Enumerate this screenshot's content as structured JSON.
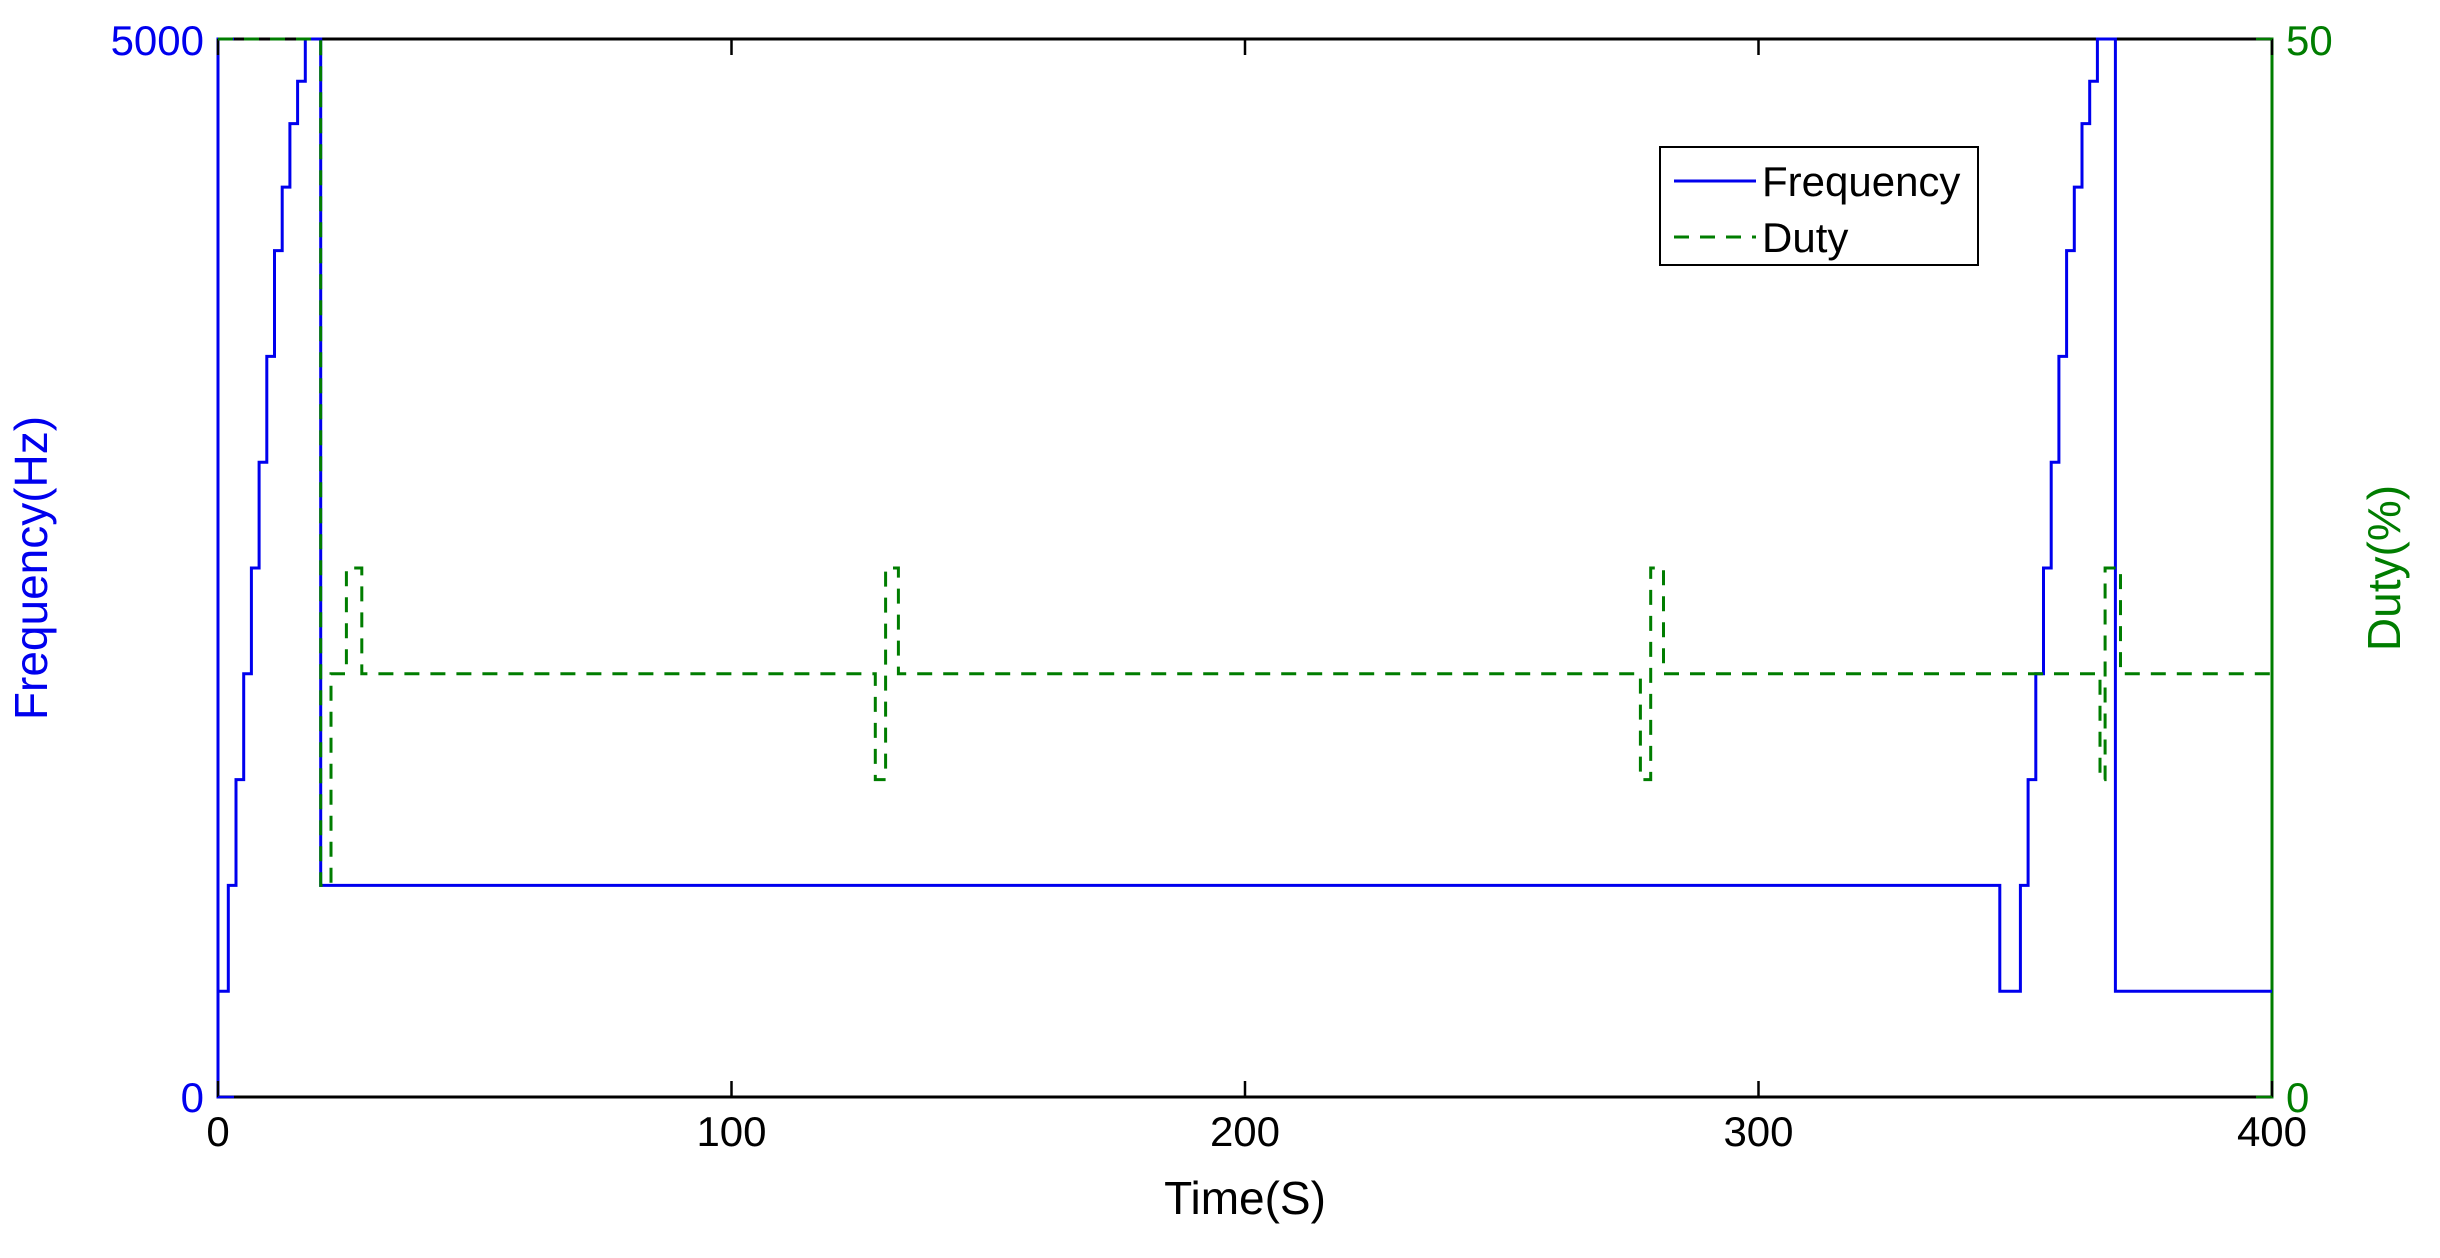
{
  "figure": {
    "background": "#ffffff",
    "legend": {
      "entries": [
        {
          "label": "Frequency",
          "color": "#0000ee",
          "dash": false
        },
        {
          "label": "Duty",
          "color": "#007d00",
          "dash": true
        }
      ],
      "position": "upper-right"
    }
  },
  "chart_data": {
    "type": "line",
    "title": "",
    "xlabel": "Time(S)",
    "ylabel_left": "Frequency(Hz)",
    "ylabel_right": "Duty(%)",
    "xlim": [
      0,
      400
    ],
    "ylim_left": [
      0,
      5000
    ],
    "ylim_right": [
      0,
      50
    ],
    "xticks": [
      0,
      100,
      200,
      300,
      400
    ],
    "xtick_labels": [
      "0",
      "100",
      "200",
      "300",
      "400"
    ],
    "yticks_left": [
      0,
      5000
    ],
    "ytick_left_labels": [
      "5000",
      "0"
    ],
    "yticks_right": [
      0,
      50
    ],
    "ytick_right_labels": [
      "50",
      "0"
    ],
    "grid": false,
    "legend_position": "upper-right",
    "axis_colors": {
      "x": "#000000",
      "left": "#0000ee",
      "right": "#007d00"
    },
    "series": [
      {
        "name": "Frequency",
        "axis": "left",
        "style": "solid",
        "color": "#0000ee",
        "points": [
          [
            0,
            500
          ],
          [
            2,
            500
          ],
          [
            2,
            1000
          ],
          [
            3.5,
            1000
          ],
          [
            3.5,
            1500
          ],
          [
            5,
            1500
          ],
          [
            5,
            2000
          ],
          [
            6.5,
            2000
          ],
          [
            6.5,
            2500
          ],
          [
            8,
            2500
          ],
          [
            8,
            3000
          ],
          [
            9.5,
            3000
          ],
          [
            9.5,
            3500
          ],
          [
            11,
            3500
          ],
          [
            11,
            4000
          ],
          [
            12.5,
            4000
          ],
          [
            12.5,
            4300
          ],
          [
            14,
            4300
          ],
          [
            14,
            4600
          ],
          [
            15.5,
            4600
          ],
          [
            15.5,
            4800
          ],
          [
            17,
            4800
          ],
          [
            17,
            5000
          ],
          [
            20,
            5000
          ],
          [
            20,
            1000
          ],
          [
            347,
            1000
          ],
          [
            347,
            500
          ],
          [
            351,
            500
          ],
          [
            351,
            1000
          ],
          [
            352.5,
            1000
          ],
          [
            352.5,
            1500
          ],
          [
            354,
            1500
          ],
          [
            354,
            2000
          ],
          [
            355.5,
            2000
          ],
          [
            355.5,
            2500
          ],
          [
            357,
            2500
          ],
          [
            357,
            3000
          ],
          [
            358.5,
            3000
          ],
          [
            358.5,
            3500
          ],
          [
            360,
            3500
          ],
          [
            360,
            4000
          ],
          [
            361.5,
            4000
          ],
          [
            361.5,
            4300
          ],
          [
            363,
            4300
          ],
          [
            363,
            4600
          ],
          [
            364.5,
            4600
          ],
          [
            364.5,
            4800
          ],
          [
            366,
            4800
          ],
          [
            366,
            5000
          ],
          [
            369.5,
            5000
          ],
          [
            369.5,
            500
          ],
          [
            400,
            500
          ]
        ]
      },
      {
        "name": "Duty",
        "axis": "right",
        "style": "dashed",
        "color": "#007d00",
        "points": [
          [
            0,
            50
          ],
          [
            20,
            50
          ],
          [
            20,
            10
          ],
          [
            22,
            10
          ],
          [
            22,
            20
          ],
          [
            25,
            20
          ],
          [
            25,
            25
          ],
          [
            28,
            25
          ],
          [
            28,
            20
          ],
          [
            128,
            20
          ],
          [
            128,
            15
          ],
          [
            130,
            15
          ],
          [
            130,
            25
          ],
          [
            132.5,
            25
          ],
          [
            132.5,
            20
          ],
          [
            277,
            20
          ],
          [
            277,
            15
          ],
          [
            279,
            15
          ],
          [
            279,
            25
          ],
          [
            281.5,
            25
          ],
          [
            281.5,
            20
          ],
          [
            366.5,
            20
          ],
          [
            366.5,
            15
          ],
          [
            367.5,
            15
          ],
          [
            367.5,
            25
          ],
          [
            370.5,
            25
          ],
          [
            370.5,
            20
          ],
          [
            400,
            20
          ]
        ]
      }
    ]
  }
}
